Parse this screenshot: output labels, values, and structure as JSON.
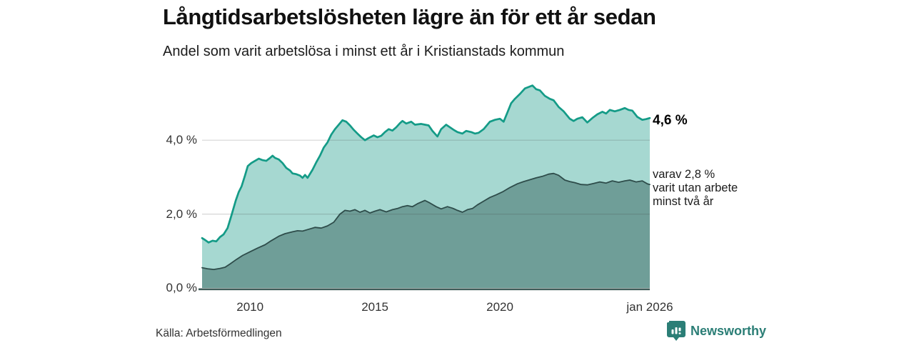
{
  "chart_data": {
    "type": "area",
    "title": "Långtidsarbetslösheten lägre än för ett år sedan",
    "subtitle": "Andel som varit arbetslösa i minst ett år i Kristianstads kommun",
    "source": "Källa: Arbetsförmedlingen",
    "brand": "Newsworthy",
    "xlim": [
      2008.08,
      2026.0
    ],
    "ylim": [
      0,
      5.86
    ],
    "grid": "horizontal",
    "y_ticks": [
      {
        "label": "0,0 %",
        "value": 0.0
      },
      {
        "label": "2,0 %",
        "value": 2.0
      },
      {
        "label": "4,0 %",
        "value": 4.0
      }
    ],
    "x_ticks": [
      {
        "label": "2010",
        "value": 2010.0
      },
      {
        "label": "2015",
        "value": 2015.0
      },
      {
        "label": "2020",
        "value": 2020.0
      },
      {
        "label": "jan 2026",
        "value": 2026.0
      }
    ],
    "annotations": {
      "total_end_label": "4,6 %",
      "secondary_end_label": "varav 2,8 %\nvarit utan arbete\nminst två år"
    },
    "series": [
      {
        "name": "Andel arbetslösa minst ett år",
        "end_value": 4.6,
        "line_color": "#149b87",
        "fill_color": "#a6d8d1",
        "points": [
          [
            2008.08,
            1.35
          ],
          [
            2008.2,
            1.3
          ],
          [
            2008.34,
            1.23
          ],
          [
            2008.5,
            1.28
          ],
          [
            2008.65,
            1.26
          ],
          [
            2008.8,
            1.38
          ],
          [
            2008.94,
            1.45
          ],
          [
            2009.1,
            1.62
          ],
          [
            2009.25,
            1.95
          ],
          [
            2009.43,
            2.37
          ],
          [
            2009.55,
            2.6
          ],
          [
            2009.66,
            2.75
          ],
          [
            2009.8,
            3.05
          ],
          [
            2009.91,
            3.3
          ],
          [
            2010.05,
            3.38
          ],
          [
            2010.2,
            3.44
          ],
          [
            2010.35,
            3.5
          ],
          [
            2010.5,
            3.46
          ],
          [
            2010.65,
            3.44
          ],
          [
            2010.8,
            3.52
          ],
          [
            2010.9,
            3.58
          ],
          [
            2011.0,
            3.52
          ],
          [
            2011.15,
            3.48
          ],
          [
            2011.3,
            3.38
          ],
          [
            2011.45,
            3.25
          ],
          [
            2011.6,
            3.18
          ],
          [
            2011.7,
            3.1
          ],
          [
            2011.85,
            3.08
          ],
          [
            2012.0,
            3.04
          ],
          [
            2012.1,
            2.98
          ],
          [
            2012.2,
            3.06
          ],
          [
            2012.3,
            2.98
          ],
          [
            2012.5,
            3.2
          ],
          [
            2012.65,
            3.4
          ],
          [
            2012.8,
            3.58
          ],
          [
            2012.95,
            3.8
          ],
          [
            2013.1,
            3.94
          ],
          [
            2013.25,
            4.15
          ],
          [
            2013.4,
            4.3
          ],
          [
            2013.55,
            4.42
          ],
          [
            2013.7,
            4.54
          ],
          [
            2013.85,
            4.5
          ],
          [
            2014.0,
            4.4
          ],
          [
            2014.15,
            4.28
          ],
          [
            2014.3,
            4.18
          ],
          [
            2014.45,
            4.08
          ],
          [
            2014.6,
            4.0
          ],
          [
            2014.75,
            4.06
          ],
          [
            2014.95,
            4.13
          ],
          [
            2015.1,
            4.08
          ],
          [
            2015.25,
            4.12
          ],
          [
            2015.4,
            4.22
          ],
          [
            2015.55,
            4.3
          ],
          [
            2015.7,
            4.26
          ],
          [
            2015.85,
            4.35
          ],
          [
            2016.0,
            4.46
          ],
          [
            2016.1,
            4.52
          ],
          [
            2016.25,
            4.45
          ],
          [
            2016.45,
            4.5
          ],
          [
            2016.6,
            4.42
          ],
          [
            2016.85,
            4.44
          ],
          [
            2017.0,
            4.42
          ],
          [
            2017.15,
            4.4
          ],
          [
            2017.3,
            4.25
          ],
          [
            2017.5,
            4.1
          ],
          [
            2017.65,
            4.3
          ],
          [
            2017.85,
            4.42
          ],
          [
            2018.0,
            4.35
          ],
          [
            2018.15,
            4.28
          ],
          [
            2018.3,
            4.22
          ],
          [
            2018.5,
            4.18
          ],
          [
            2018.65,
            4.25
          ],
          [
            2018.85,
            4.22
          ],
          [
            2019.0,
            4.18
          ],
          [
            2019.15,
            4.2
          ],
          [
            2019.35,
            4.3
          ],
          [
            2019.6,
            4.5
          ],
          [
            2019.8,
            4.55
          ],
          [
            2020.0,
            4.58
          ],
          [
            2020.15,
            4.5
          ],
          [
            2020.3,
            4.75
          ],
          [
            2020.45,
            5.0
          ],
          [
            2020.6,
            5.12
          ],
          [
            2020.8,
            5.25
          ],
          [
            2021.0,
            5.4
          ],
          [
            2021.15,
            5.44
          ],
          [
            2021.3,
            5.48
          ],
          [
            2021.45,
            5.38
          ],
          [
            2021.6,
            5.35
          ],
          [
            2021.8,
            5.2
          ],
          [
            2022.0,
            5.12
          ],
          [
            2022.15,
            5.08
          ],
          [
            2022.35,
            4.9
          ],
          [
            2022.55,
            4.78
          ],
          [
            2022.8,
            4.58
          ],
          [
            2022.95,
            4.52
          ],
          [
            2023.1,
            4.58
          ],
          [
            2023.3,
            4.62
          ],
          [
            2023.5,
            4.48
          ],
          [
            2023.7,
            4.6
          ],
          [
            2023.9,
            4.7
          ],
          [
            2024.1,
            4.77
          ],
          [
            2024.25,
            4.72
          ],
          [
            2024.4,
            4.82
          ],
          [
            2024.6,
            4.78
          ],
          [
            2024.8,
            4.82
          ],
          [
            2025.0,
            4.87
          ],
          [
            2025.15,
            4.82
          ],
          [
            2025.3,
            4.8
          ],
          [
            2025.5,
            4.63
          ],
          [
            2025.7,
            4.55
          ],
          [
            2025.85,
            4.57
          ],
          [
            2026.0,
            4.6
          ]
        ]
      },
      {
        "name": "Varav utan arbete minst två år",
        "end_value": 2.8,
        "line_color": "#2e4c4a",
        "fill_color": "#6f9e98",
        "points": [
          [
            2008.08,
            0.55
          ],
          [
            2008.3,
            0.52
          ],
          [
            2008.55,
            0.5
          ],
          [
            2008.8,
            0.53
          ],
          [
            2009.0,
            0.56
          ],
          [
            2009.2,
            0.65
          ],
          [
            2009.45,
            0.77
          ],
          [
            2009.7,
            0.88
          ],
          [
            2010.0,
            0.98
          ],
          [
            2010.3,
            1.08
          ],
          [
            2010.6,
            1.17
          ],
          [
            2010.85,
            1.28
          ],
          [
            2011.15,
            1.4
          ],
          [
            2011.4,
            1.47
          ],
          [
            2011.7,
            1.52
          ],
          [
            2011.9,
            1.55
          ],
          [
            2012.1,
            1.54
          ],
          [
            2012.3,
            1.58
          ],
          [
            2012.6,
            1.64
          ],
          [
            2012.85,
            1.62
          ],
          [
            2013.1,
            1.68
          ],
          [
            2013.35,
            1.78
          ],
          [
            2013.6,
            2.0
          ],
          [
            2013.8,
            2.1
          ],
          [
            2014.0,
            2.08
          ],
          [
            2014.2,
            2.12
          ],
          [
            2014.4,
            2.05
          ],
          [
            2014.6,
            2.1
          ],
          [
            2014.8,
            2.03
          ],
          [
            2015.0,
            2.08
          ],
          [
            2015.2,
            2.12
          ],
          [
            2015.45,
            2.06
          ],
          [
            2015.7,
            2.12
          ],
          [
            2015.9,
            2.15
          ],
          [
            2016.1,
            2.2
          ],
          [
            2016.3,
            2.23
          ],
          [
            2016.5,
            2.2
          ],
          [
            2016.7,
            2.28
          ],
          [
            2017.0,
            2.37
          ],
          [
            2017.2,
            2.3
          ],
          [
            2017.45,
            2.2
          ],
          [
            2017.65,
            2.14
          ],
          [
            2017.9,
            2.2
          ],
          [
            2018.1,
            2.16
          ],
          [
            2018.3,
            2.1
          ],
          [
            2018.5,
            2.05
          ],
          [
            2018.7,
            2.12
          ],
          [
            2018.9,
            2.15
          ],
          [
            2019.1,
            2.25
          ],
          [
            2019.35,
            2.35
          ],
          [
            2019.6,
            2.45
          ],
          [
            2019.85,
            2.52
          ],
          [
            2020.1,
            2.6
          ],
          [
            2020.4,
            2.72
          ],
          [
            2020.7,
            2.82
          ],
          [
            2020.95,
            2.88
          ],
          [
            2021.2,
            2.93
          ],
          [
            2021.45,
            2.98
          ],
          [
            2021.7,
            3.02
          ],
          [
            2021.95,
            3.08
          ],
          [
            2022.15,
            3.1
          ],
          [
            2022.35,
            3.05
          ],
          [
            2022.6,
            2.92
          ],
          [
            2022.8,
            2.88
          ],
          [
            2023.0,
            2.85
          ],
          [
            2023.25,
            2.8
          ],
          [
            2023.5,
            2.79
          ],
          [
            2023.75,
            2.83
          ],
          [
            2024.0,
            2.87
          ],
          [
            2024.25,
            2.84
          ],
          [
            2024.5,
            2.9
          ],
          [
            2024.75,
            2.86
          ],
          [
            2025.0,
            2.9
          ],
          [
            2025.2,
            2.92
          ],
          [
            2025.45,
            2.87
          ],
          [
            2025.7,
            2.9
          ],
          [
            2025.9,
            2.82
          ],
          [
            2026.0,
            2.8
          ]
        ]
      }
    ]
  },
  "colors": {
    "axis_line": "#405c59",
    "grid_line": "rgba(70,70,70,0.22)",
    "tick_text": "#333333",
    "brand_teal": "#2b7e76"
  }
}
